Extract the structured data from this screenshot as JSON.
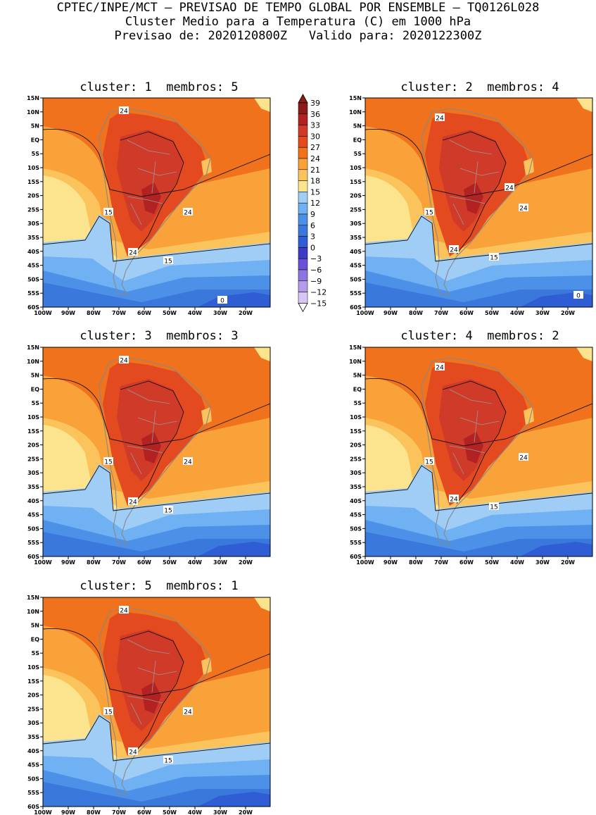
{
  "header": {
    "line1": "CPTEC/INPE/MCT — PREVISAO DE TEMPO GLOBAL POR ENSEMBLE — TQ0126L028",
    "line2": "Cluster Medio para a Temperatura (C) em 1000 hPa",
    "line3": "Previsao de: 2020120800Z   Valido para: 2020122300Z"
  },
  "panels": [
    {
      "title": "cluster: 1  membros: 5",
      "labels": {
        "a": "24",
        "b": "15",
        "c": "24",
        "d": "24",
        "e": "15",
        "f": "0"
      }
    },
    {
      "title": "cluster: 2  membros: 4",
      "labels": {
        "a": "24",
        "b": "15",
        "c": "24",
        "d": "24",
        "e": "15",
        "f": "0",
        "g": "24"
      }
    },
    {
      "title": "cluster: 3  membros: 3",
      "labels": {
        "a": "24",
        "b": "15",
        "c": "24",
        "d": "24",
        "e": "15"
      }
    },
    {
      "title": "cluster: 4  membros: 2",
      "labels": {
        "a": "24",
        "b": "15",
        "c": "24",
        "d": "24",
        "e": "15"
      }
    },
    {
      "title": "cluster: 5  membros: 1",
      "labels": {
        "a": "24",
        "b": "15",
        "c": "24",
        "d": "24",
        "e": "15"
      }
    }
  ],
  "axes": {
    "lat": [
      "15N",
      "10N",
      "5N",
      "EQ",
      "5S",
      "10S",
      "15S",
      "20S",
      "25S",
      "30S",
      "35S",
      "40S",
      "45S",
      "50S",
      "55S",
      "60S"
    ],
    "lon": [
      "100W",
      "90W",
      "80W",
      "70W",
      "60W",
      "50W",
      "40W",
      "30W",
      "20W"
    ]
  },
  "colorbar": {
    "levels": [
      "39",
      "36",
      "33",
      "30",
      "27",
      "24",
      "21",
      "18",
      "15",
      "12",
      "9",
      "6",
      "3",
      "0",
      "−3",
      "−6",
      "−9",
      "−12",
      "−15"
    ],
    "colors": [
      "#8b1a1a",
      "#b22222",
      "#d03a28",
      "#e34a1f",
      "#f0721d",
      "#f9a23a",
      "#fbc35c",
      "#fce38d",
      "#9fcdf6",
      "#6fb1f2",
      "#4c90e8",
      "#3a78dc",
      "#2f5ed4",
      "#3e3bc4",
      "#6a50d6",
      "#8e74e0",
      "#b49ceb",
      "#d7c6f4"
    ]
  }
}
